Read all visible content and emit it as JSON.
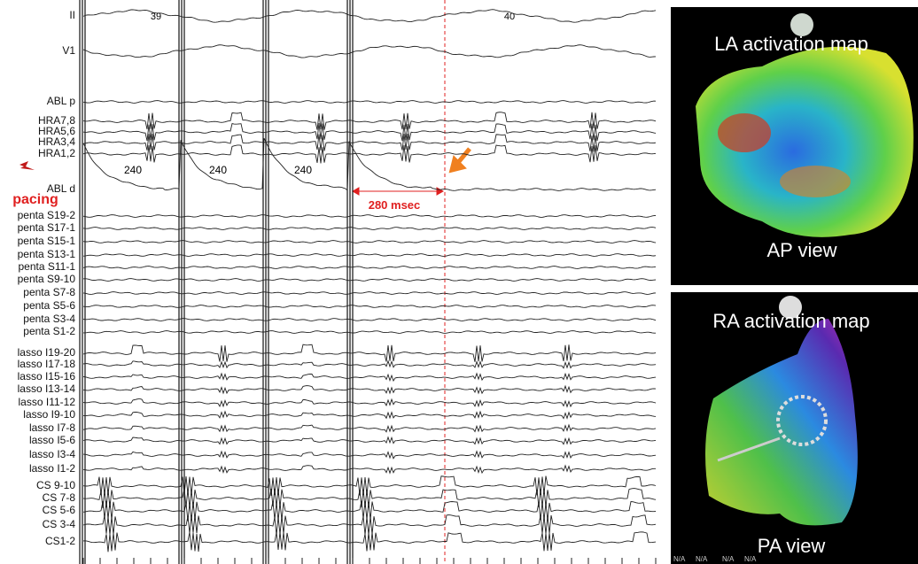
{
  "ecg": {
    "beat_numbers": [
      "39",
      "40"
    ],
    "cycle_labels": [
      "240",
      "240",
      "240"
    ],
    "pacing_label": "pacing",
    "interval_label": "280 msec",
    "channels": [
      "II",
      "V1",
      "ABL p",
      "HRA7,8",
      "HRA5,6",
      "HRA3,4",
      "HRA1,2",
      "ABL d",
      "penta S19-2",
      "penta S17-1",
      "penta S15-1",
      "penta S13-1",
      "penta S11-1",
      "penta S9-10",
      "penta S7-8",
      "penta S5-6",
      "penta S3-4",
      "penta S1-2",
      "lasso I19-20",
      "lasso I17-18",
      "lasso I15-16",
      "lasso I13-14",
      "lasso I11-12",
      "lasso I9-10",
      "lasso I7-8",
      "lasso I5-6",
      "lasso I3-4",
      "lasso I1-2",
      "CS 9-10",
      "CS 7-8",
      "CS 5-6",
      "CS 3-4",
      "CS1-2"
    ]
  },
  "maps": [
    {
      "title": "LA activation map",
      "view": "AP view"
    },
    {
      "title": "RA activation map",
      "view": "PA view"
    }
  ],
  "footer": [
    "N/A",
    "N/A",
    "N/A",
    "N/A"
  ]
}
